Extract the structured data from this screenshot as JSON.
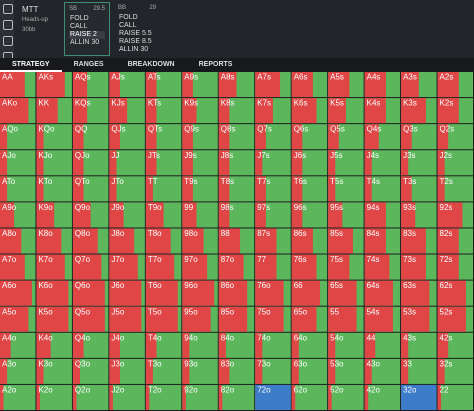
{
  "header": {
    "game": "MTT",
    "mode": "Heads-up",
    "stack": "30bb",
    "players": [
      {
        "name": "SB",
        "stack": 29.5,
        "actions": [
          "FOLD",
          "CALL",
          "RAISE 2",
          "ALLIN 30"
        ],
        "selected": 2
      },
      {
        "name": "BB",
        "stack": 29,
        "actions": [
          "FOLD",
          "CALL",
          "RAISE 5.5",
          "RAISE 8.5",
          "ALLIN 30"
        ]
      }
    ]
  },
  "tabs": {
    "items": [
      "STRATEGY",
      "RANGES",
      "BREAKDOWN",
      "REPORTS"
    ],
    "active": 0
  },
  "grid": {
    "hands": [
      [
        "AA",
        "AKs",
        "AQs",
        "AJs",
        "ATs",
        "A9s",
        "A8s",
        "A7s",
        "A6s",
        "A5s",
        "A4s",
        "A3s",
        "A2s"
      ],
      [
        "AKo",
        "KK",
        "KQs",
        "KJs",
        "KTs",
        "K9s",
        "K8s",
        "K7s",
        "K6s",
        "K5s",
        "K4s",
        "K3s",
        "K2s"
      ],
      [
        "AQo",
        "KQo",
        "QQ",
        "QJs",
        "QTs",
        "Q9s",
        "Q8s",
        "Q7s",
        "Q6s",
        "Q5s",
        "Q4s",
        "Q3s",
        "Q2s"
      ],
      [
        "AJo",
        "KJo",
        "QJo",
        "JJ",
        "JTs",
        "J9s",
        "J8s",
        "J7s",
        "J6s",
        "J5s",
        "J4s",
        "J3s",
        "J2s"
      ],
      [
        "ATo",
        "KTo",
        "QTo",
        "JTo",
        "TT",
        "T9s",
        "T8s",
        "T7s",
        "T6s",
        "T5s",
        "T4s",
        "T3s",
        "T2s"
      ],
      [
        "A9o",
        "K9o",
        "Q9o",
        "J9o",
        "T9o",
        "99",
        "98s",
        "97s",
        "96s",
        "95s",
        "94s",
        "93s",
        "92s"
      ],
      [
        "A8o",
        "K8o",
        "Q8o",
        "J8o",
        "T8o",
        "98o",
        "88",
        "87s",
        "86s",
        "85s",
        "84s",
        "83s",
        "82s"
      ],
      [
        "A7o",
        "K7o",
        "Q7o",
        "J7o",
        "T7o",
        "97o",
        "87o",
        "77",
        "76s",
        "75s",
        "74s",
        "73s",
        "72s"
      ],
      [
        "A6o",
        "K6o",
        "Q6o",
        "J6o",
        "T6o",
        "96o",
        "86o",
        "76o",
        "66",
        "65s",
        "64s",
        "63s",
        "62s"
      ],
      [
        "A5o",
        "K5o",
        "Q5o",
        "J5o",
        "T5o",
        "95o",
        "85o",
        "75o",
        "65o",
        "55",
        "54s",
        "53s",
        "52s"
      ],
      [
        "A4o",
        "K4o",
        "Q4o",
        "J4o",
        "T4o",
        "94o",
        "84o",
        "74o",
        "64o",
        "54o",
        "44",
        "43s",
        "42s"
      ],
      [
        "A3o",
        "K3o",
        "Q3o",
        "J3o",
        "T3o",
        "93o",
        "83o",
        "73o",
        "63o",
        "53o",
        "43o",
        "33",
        "32s"
      ],
      [
        "A2o",
        "K2o",
        "Q2o",
        "J2o",
        "T2o",
        "92o",
        "82o",
        "72o",
        "62o",
        "52o",
        "42o",
        "32o",
        "22"
      ]
    ],
    "raise": [
      [
        0.7,
        0.8,
        0.4,
        0.3,
        0.3,
        0.3,
        0.5,
        0.7,
        0.6,
        0.6,
        0.6,
        0.5,
        0.6
      ],
      [
        0.8,
        0.6,
        0.4,
        0.5,
        0.3,
        0.4,
        0.3,
        0.5,
        0.7,
        0.5,
        0.6,
        0.7,
        0.6
      ],
      [
        0.2,
        0.2,
        0.3,
        0.3,
        0.3,
        0.3,
        0.3,
        0.3,
        0.3,
        0.3,
        0.4,
        0.3,
        0.3
      ],
      [
        0.2,
        0.2,
        0.3,
        0.2,
        0.3,
        0.3,
        0.3,
        0.2,
        0.3,
        0.2,
        0.2,
        0.2,
        0.2
      ],
      [
        0.2,
        0.2,
        0.3,
        0.2,
        0.2,
        0.3,
        0.3,
        0.3,
        0.3,
        0.2,
        0.2,
        0.3,
        0.2
      ],
      [
        0.4,
        0.5,
        0.5,
        0.4,
        0.5,
        0.4,
        0.3,
        0.3,
        0.3,
        0.4,
        0.6,
        0.4,
        0.7
      ],
      [
        0.6,
        0.7,
        0.7,
        0.7,
        0.7,
        0.6,
        0.6,
        0.6,
        0.6,
        0.7,
        0.6,
        0.7,
        0.6
      ],
      [
        0.7,
        0.8,
        0.8,
        0.8,
        0.8,
        0.7,
        0.7,
        0.6,
        0.7,
        0.6,
        0.7,
        0.7,
        0.6
      ],
      [
        0.9,
        0.9,
        0.9,
        0.9,
        0.9,
        0.9,
        0.8,
        0.8,
        0.8,
        0.8,
        0.8,
        0.8,
        0.8
      ],
      [
        0.8,
        0.9,
        0.9,
        0.9,
        0.9,
        0.8,
        0.8,
        0.8,
        0.7,
        0.8,
        0.8,
        0.8,
        0.8
      ],
      [
        0.3,
        0.4,
        0.3,
        0.3,
        0.3,
        0.2,
        0.2,
        0.2,
        0.2,
        0.2,
        0.3,
        0.2,
        0.3
      ],
      [
        0.2,
        0.2,
        0.2,
        0.3,
        0.2,
        0.2,
        0.3,
        0.2,
        0.2,
        0.2,
        0.2,
        0.2,
        0.2
      ],
      [
        0.1,
        0.1,
        0.1,
        0.1,
        0.1,
        0.1,
        0.1,
        0,
        0.1,
        0.1,
        0.1,
        0,
        0.1
      ]
    ],
    "fold": [
      {
        "row": 12,
        "col": 7,
        "value": 1
      },
      {
        "row": 12,
        "col": 11,
        "value": 1
      }
    ]
  }
}
